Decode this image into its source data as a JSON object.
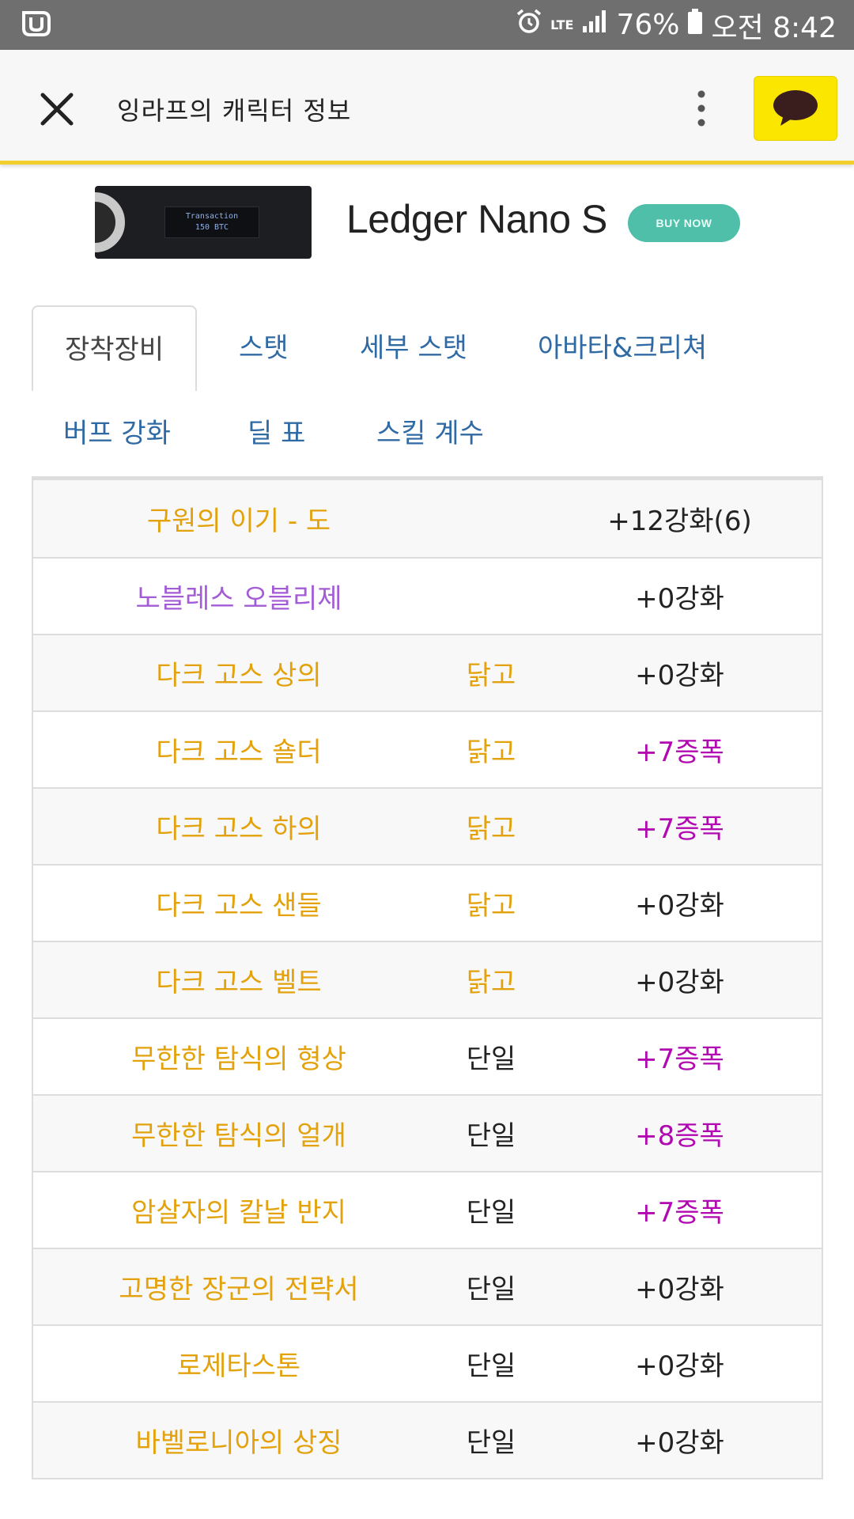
{
  "status_bar": {
    "battery": "76%",
    "time": "오전 8:42",
    "network": "LTE",
    "colors": {
      "background": "#6f6f6f"
    }
  },
  "header": {
    "title": "잉라프의 캐릭터 정보",
    "accent_color": "#f0cf2f",
    "talk_button_color": "#fbe600"
  },
  "ad": {
    "device_screen_line1": "Transaction",
    "device_screen_line2": "150 BTC",
    "product": "Ledger Nano S",
    "cta": "BUY NOW"
  },
  "tabs": [
    {
      "label": "장착장비",
      "active": true
    },
    {
      "label": "스탯",
      "active": false
    },
    {
      "label": "세부 스탯",
      "active": false
    },
    {
      "label": "아바타&크리쳐",
      "active": false
    },
    {
      "label": "버프 강화",
      "active": false
    },
    {
      "label": "딜 표",
      "active": false
    },
    {
      "label": "스킬 계수",
      "active": false
    }
  ],
  "equipment": [
    {
      "name": "구원의 이기 - 도",
      "name_color": "gold",
      "type": "",
      "type_color": "dark",
      "enhance": "+12강화(6)",
      "enhance_color": "dark"
    },
    {
      "name": "노블레스 오블리제",
      "name_color": "purple",
      "type": "",
      "type_color": "dark",
      "enhance": "+0강화",
      "enhance_color": "dark"
    },
    {
      "name": "다크 고스 상의",
      "name_color": "gold",
      "type": "닭고",
      "type_color": "gold",
      "enhance": "+0강화",
      "enhance_color": "dark"
    },
    {
      "name": "다크 고스 숄더",
      "name_color": "gold",
      "type": "닭고",
      "type_color": "gold",
      "enhance": "+7증폭",
      "enhance_color": "magenta"
    },
    {
      "name": "다크 고스 하의",
      "name_color": "gold",
      "type": "닭고",
      "type_color": "gold",
      "enhance": "+7증폭",
      "enhance_color": "magenta"
    },
    {
      "name": "다크 고스 샌들",
      "name_color": "gold",
      "type": "닭고",
      "type_color": "gold",
      "enhance": "+0강화",
      "enhance_color": "dark"
    },
    {
      "name": "다크 고스 벨트",
      "name_color": "gold",
      "type": "닭고",
      "type_color": "gold",
      "enhance": "+0강화",
      "enhance_color": "dark"
    },
    {
      "name": "무한한 탐식의 형상",
      "name_color": "gold",
      "type": "단일",
      "type_color": "dark",
      "enhance": "+7증폭",
      "enhance_color": "magenta"
    },
    {
      "name": "무한한 탐식의 얼개",
      "name_color": "gold",
      "type": "단일",
      "type_color": "dark",
      "enhance": "+8증폭",
      "enhance_color": "magenta"
    },
    {
      "name": "암살자의 칼날 반지",
      "name_color": "gold",
      "type": "단일",
      "type_color": "dark",
      "enhance": "+7증폭",
      "enhance_color": "magenta"
    },
    {
      "name": "고명한 장군의 전략서",
      "name_color": "gold",
      "type": "단일",
      "type_color": "dark",
      "enhance": "+0강화",
      "enhance_color": "dark"
    },
    {
      "name": "로제타스톤",
      "name_color": "gold",
      "type": "단일",
      "type_color": "dark",
      "enhance": "+0강화",
      "enhance_color": "dark"
    },
    {
      "name": "바벨로니아의 상징",
      "name_color": "gold",
      "type": "단일",
      "type_color": "dark",
      "enhance": "+0강화",
      "enhance_color": "dark"
    }
  ],
  "icons": [
    "app-logo-icon",
    "alarm-icon",
    "signal-icon",
    "battery-icon",
    "close-icon",
    "more-vert-icon",
    "chat-bubble-icon"
  ]
}
